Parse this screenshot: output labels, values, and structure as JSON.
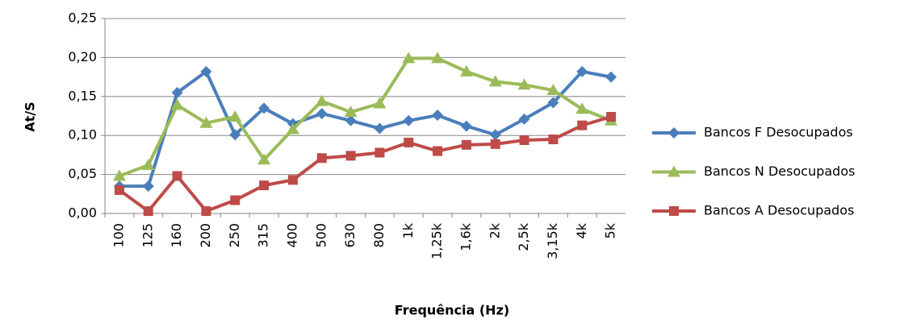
{
  "chart_data": {
    "type": "line",
    "xlabel": "Frequência (Hz)",
    "ylabel": "At/S",
    "categories": [
      "100",
      "125",
      "160",
      "200",
      "250",
      "315",
      "400",
      "500",
      "630",
      "800",
      "1k",
      "1,25k",
      "1,6k",
      "2k",
      "2,5k",
      "3,15k",
      "4k",
      "5k"
    ],
    "series": [
      {
        "name": "Bancos F Desocupados",
        "color": "#4a7ebb",
        "marker": "diamond",
        "values": [
          0.035,
          0.035,
          0.155,
          0.182,
          0.101,
          0.135,
          0.115,
          0.128,
          0.119,
          0.109,
          0.119,
          0.126,
          0.112,
          0.101,
          0.121,
          0.142,
          0.182,
          0.175
        ]
      },
      {
        "name": "Bancos N Desocupados",
        "color": "#9bbb59",
        "marker": "triangle",
        "values": [
          0.048,
          0.062,
          0.139,
          0.116,
          0.124,
          0.069,
          0.108,
          0.144,
          0.13,
          0.141,
          0.199,
          0.199,
          0.182,
          0.169,
          0.165,
          0.158,
          0.134,
          0.119
        ]
      },
      {
        "name": "Bancos A Desocupados",
        "color": "#be4b48",
        "marker": "square",
        "values": [
          0.03,
          0.003,
          0.048,
          0.003,
          0.017,
          0.036,
          0.043,
          0.071,
          0.074,
          0.078,
          0.091,
          0.08,
          0.088,
          0.089,
          0.094,
          0.095,
          0.113,
          0.124
        ]
      }
    ],
    "ylim": [
      0,
      0.25
    ],
    "yticks": [
      {
        "value": 0,
        "label": "0,00"
      },
      {
        "value": 0.05,
        "label": "0,05"
      },
      {
        "value": 0.1,
        "label": "0,10"
      },
      {
        "value": 0.15,
        "label": "0,15"
      },
      {
        "value": 0.2,
        "label": "0,20"
      },
      {
        "value": 0.25,
        "label": "0,25"
      }
    ],
    "grid": true,
    "legend": "right"
  }
}
